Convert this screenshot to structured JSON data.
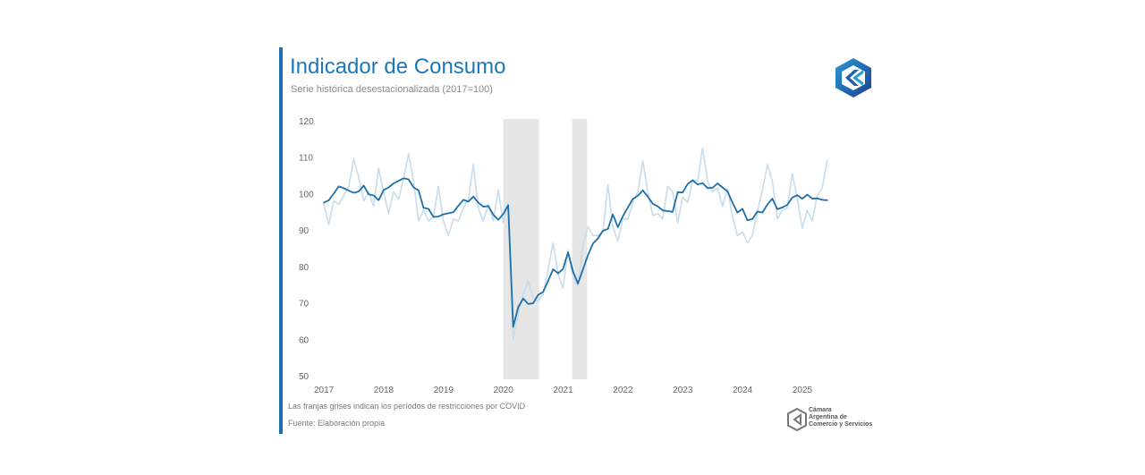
{
  "header": {
    "title": "Indicador de Consumo",
    "subtitle": "Serie histórica desestacionalizada (2017=100)"
  },
  "footer": {
    "note": "Las franjas grises indican los períodos de restricciones por COVID",
    "source": "Fuente: Elaboración propia",
    "org_lines": [
      "Cámara",
      "Argentina de",
      "Comercio y Servicios"
    ]
  },
  "colors": {
    "accent": "#1f6fb2",
    "title": "#1c78b8",
    "series_main": "#1f6fa8",
    "series_raw": "#c7dcec",
    "shade": "#e6e6e6"
  },
  "chart_data": {
    "type": "line",
    "ylim": [
      50,
      120
    ],
    "yticks": [
      50,
      60,
      70,
      80,
      90,
      100,
      110,
      120
    ],
    "xlim": [
      2017,
      2025.75
    ],
    "xticks": [
      2017,
      2018,
      2019,
      2020,
      2021,
      2022,
      2023,
      2024,
      2025
    ],
    "x_tick_labels": [
      "2017",
      "2018",
      "2019",
      "2020",
      "2021",
      "2022",
      "2023",
      "2024",
      "2025"
    ],
    "shaded_periods": [
      [
        2020.0,
        2020.6
      ],
      [
        2021.15,
        2021.4
      ]
    ],
    "series": [
      {
        "values": [
          97.5,
          98.2,
          100,
          102,
          101.5,
          100.8,
          100.2,
          100.6,
          102.2,
          99.8,
          99.5,
          98.2,
          101,
          101.7,
          102.8,
          103.5,
          104.2,
          103.9,
          101.7,
          100.9,
          96.1,
          95.8,
          93.6,
          93.7,
          94.3,
          94.6,
          94.9,
          96.7,
          98.3,
          97.8,
          99.2,
          97.5,
          96.4,
          96.6,
          94.2,
          92.8,
          94.4,
          96.8,
          63.4,
          68.8,
          71.2,
          69.7,
          69.9,
          72.2,
          73,
          76,
          79.2,
          78.1,
          79.3,
          83.9,
          78.6,
          75.3,
          79.2,
          83.1,
          86.3,
          87.7,
          89.8,
          90.3,
          94.3,
          90.8,
          93.8,
          96.2,
          98.5,
          99.4,
          100.9,
          99.2,
          97.2,
          96.5,
          95.4,
          95.2,
          95,
          100.4,
          100.3,
          102.6,
          103.7,
          102.5,
          102.9,
          101.5,
          101.6,
          102.8,
          101.7,
          100.6,
          97.5,
          94.8,
          95.8,
          92.7,
          93,
          95.1,
          94.8,
          97,
          98.6,
          95.7,
          96.2,
          96.9,
          98.9,
          99.6,
          98.6,
          99.7,
          98.6,
          98.7,
          98.3,
          98.2
        ]
      },
      {
        "values": [
          97,
          91.5,
          98,
          97,
          99.5,
          102,
          109.5,
          104.5,
          98,
          100.5,
          96.5,
          107,
          100.5,
          94.5,
          100.5,
          98.5,
          104,
          111,
          103.5,
          92.5,
          95.5,
          92.5,
          93.5,
          102,
          92.5,
          88.5,
          93,
          92.5,
          96,
          98.5,
          108,
          96,
          92.5,
          97,
          92.5,
          101,
          92,
          97.5,
          60,
          67,
          72.5,
          76,
          71.5,
          70.5,
          72.5,
          79,
          86.5,
          78,
          74,
          84.5,
          77,
          74.5,
          86,
          91,
          88.5,
          88.5,
          89.5,
          102.5,
          91,
          87,
          93,
          93,
          97.5,
          100.5,
          109,
          100.5,
          94,
          94.5,
          93,
          102,
          100.5,
          92,
          99,
          97.5,
          103.5,
          103.5,
          112.5,
          103.5,
          100.5,
          101.5,
          96.5,
          101.5,
          93.5,
          88.5,
          89.5,
          86.5,
          88.5,
          95,
          101,
          108,
          103.5,
          93,
          95.5,
          96,
          105.5,
          98.5,
          90.5,
          95.5,
          92.5,
          99.5,
          101.5,
          109
        ]
      }
    ]
  }
}
